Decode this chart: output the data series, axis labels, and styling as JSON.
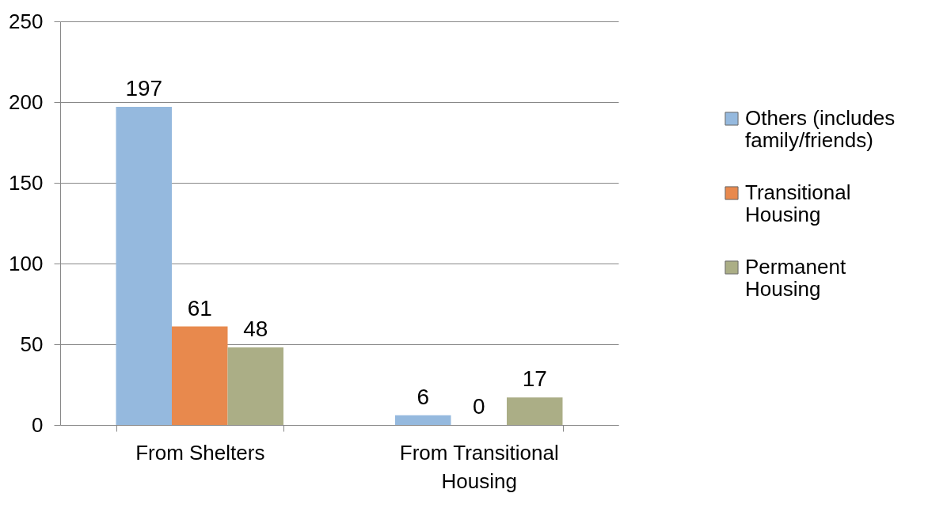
{
  "chart_data": {
    "type": "bar",
    "categories": [
      "From Shelters",
      "From Transitional Housing"
    ],
    "series": [
      {
        "name": "Others (includes family/friends)",
        "color": "#95b9de",
        "values": [
          197,
          6
        ]
      },
      {
        "name": "Transitional Housing",
        "color": "#e8894d",
        "values": [
          61,
          0
        ]
      },
      {
        "name": "Permanent Housing",
        "color": "#abae86",
        "values": [
          48,
          17
        ]
      }
    ],
    "ylim": [
      0,
      250
    ],
    "yticks": [
      0,
      50,
      100,
      150,
      200,
      250
    ],
    "grid": "y",
    "legend": "right",
    "data_labels": true
  }
}
